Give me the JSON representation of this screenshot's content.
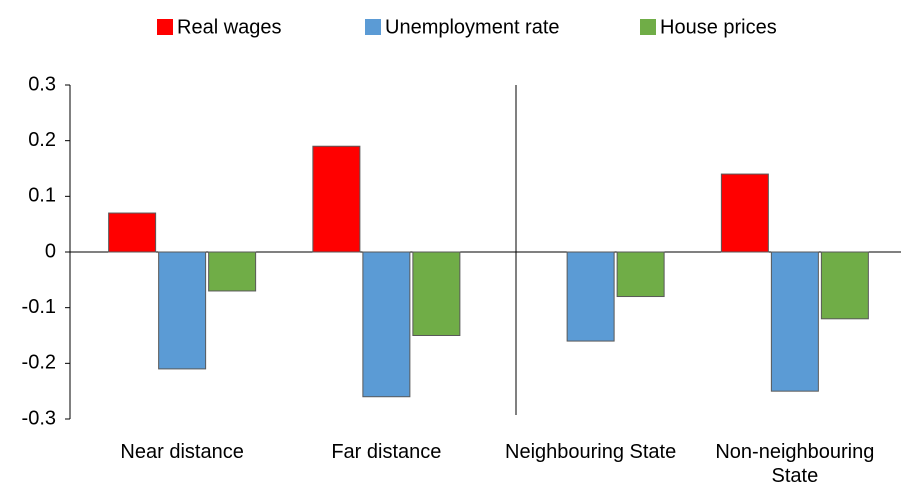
{
  "chart_data": {
    "type": "bar",
    "categories": [
      "Near distance",
      "Far distance",
      "Neighbouring State",
      "Non-neighbouring State"
    ],
    "series": [
      {
        "name": "Real wages",
        "color": "#ff0000",
        "values": [
          0.07,
          0.19,
          0,
          0.14
        ]
      },
      {
        "name": "Unemployment rate",
        "color": "#5b9bd5",
        "values": [
          -0.21,
          -0.26,
          -0.16,
          -0.25
        ]
      },
      {
        "name": "House prices",
        "color": "#70ad47",
        "values": [
          -0.07,
          -0.15,
          -0.08,
          -0.12
        ]
      }
    ],
    "ylim": [
      -0.3,
      0.3
    ],
    "yticks": [
      -0.3,
      -0.2,
      -0.1,
      0,
      0.1,
      0.2,
      0.3
    ],
    "grid": false,
    "legend": "top"
  }
}
